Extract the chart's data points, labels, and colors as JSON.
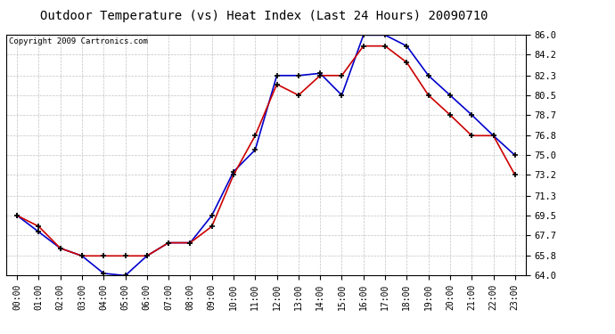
{
  "title": "Outdoor Temperature (vs) Heat Index (Last 24 Hours) 20090710",
  "copyright": "Copyright 2009 Cartronics.com",
  "hours": [
    "00:00",
    "01:00",
    "02:00",
    "03:00",
    "04:00",
    "05:00",
    "06:00",
    "07:00",
    "08:00",
    "09:00",
    "10:00",
    "11:00",
    "12:00",
    "13:00",
    "14:00",
    "15:00",
    "16:00",
    "17:00",
    "18:00",
    "19:00",
    "20:00",
    "21:00",
    "22:00",
    "23:00"
  ],
  "blue_data": [
    69.5,
    68.0,
    66.5,
    65.8,
    64.2,
    64.0,
    65.8,
    67.0,
    67.0,
    69.5,
    73.5,
    75.5,
    82.3,
    82.3,
    82.5,
    80.5,
    86.0,
    86.0,
    85.0,
    82.3,
    80.5,
    78.7,
    76.8,
    75.0
  ],
  "red_data": [
    69.5,
    68.5,
    66.5,
    65.8,
    65.8,
    65.8,
    65.8,
    67.0,
    67.0,
    68.5,
    73.2,
    76.8,
    81.5,
    80.5,
    82.3,
    82.3,
    85.0,
    85.0,
    83.5,
    80.5,
    78.7,
    76.8,
    76.8,
    73.2
  ],
  "ylim": [
    64.0,
    86.0
  ],
  "yticks": [
    64.0,
    65.8,
    67.7,
    69.5,
    71.3,
    73.2,
    75.0,
    76.8,
    78.7,
    80.5,
    82.3,
    84.2,
    86.0
  ],
  "blue_color": "#0000cc",
  "red_color": "#cc0000",
  "plot_bg": "#ffffff",
  "fig_bg": "#ffffff",
  "grid_color": "#bbbbbb",
  "title_fontsize": 10,
  "copyright_fontsize": 6.5,
  "tick_fontsize": 7,
  "ytick_fontsize": 7.5
}
